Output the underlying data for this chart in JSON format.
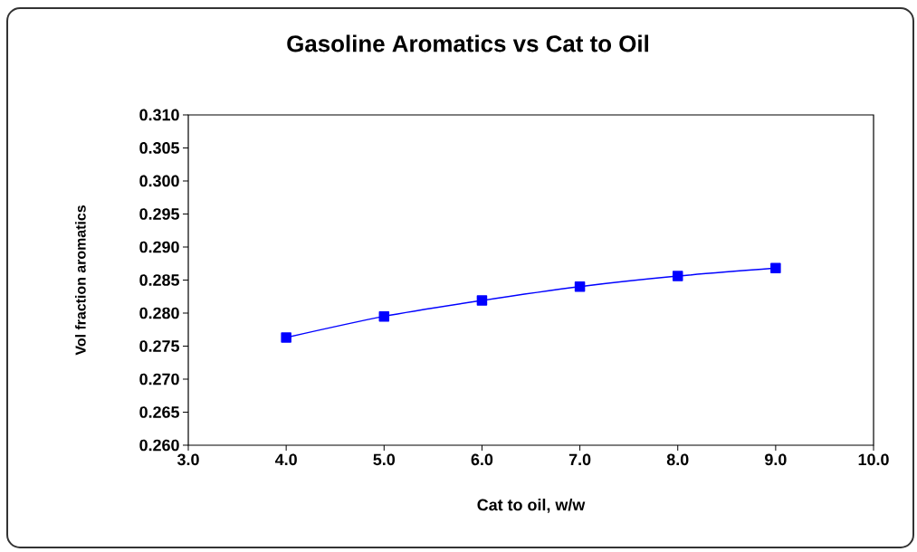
{
  "chart_data": {
    "type": "line",
    "title": "Gasoline Aromatics vs Cat to Oil",
    "xlabel": "Cat to oil, w/w",
    "ylabel": "Vol fraction aromatics",
    "x": [
      4,
      5,
      6,
      7,
      8,
      9
    ],
    "series": [
      {
        "color": "#0000ff",
        "values": [
          0.2763,
          0.2795,
          0.2819,
          0.284,
          0.2856,
          0.2868
        ]
      }
    ],
    "xlim": [
      3,
      10
    ],
    "ylim": [
      0.26,
      0.31
    ],
    "xticks": [
      {
        "value": 3,
        "label": "3.0"
      },
      {
        "value": 4,
        "label": "4.0"
      },
      {
        "value": 5,
        "label": "5.0"
      },
      {
        "value": 6,
        "label": "6.0"
      },
      {
        "value": 7,
        "label": "7.0"
      },
      {
        "value": 8,
        "label": "8.0"
      },
      {
        "value": 9,
        "label": "9.0"
      },
      {
        "value": 10,
        "label": "10.0"
      }
    ],
    "yticks": [
      {
        "value": 0.26,
        "label": "0.260"
      },
      {
        "value": 0.265,
        "label": "0.265"
      },
      {
        "value": 0.27,
        "label": "0.270"
      },
      {
        "value": 0.275,
        "label": "0.275"
      },
      {
        "value": 0.28,
        "label": "0.280"
      },
      {
        "value": 0.285,
        "label": "0.285"
      },
      {
        "value": 0.29,
        "label": "0.290"
      },
      {
        "value": 0.295,
        "label": "0.295"
      },
      {
        "value": 0.3,
        "label": "0.300"
      },
      {
        "value": 0.305,
        "label": "0.305"
      },
      {
        "value": 0.31,
        "label": "0.310"
      }
    ],
    "marker": "square",
    "line_style": "solid",
    "grid": false
  }
}
